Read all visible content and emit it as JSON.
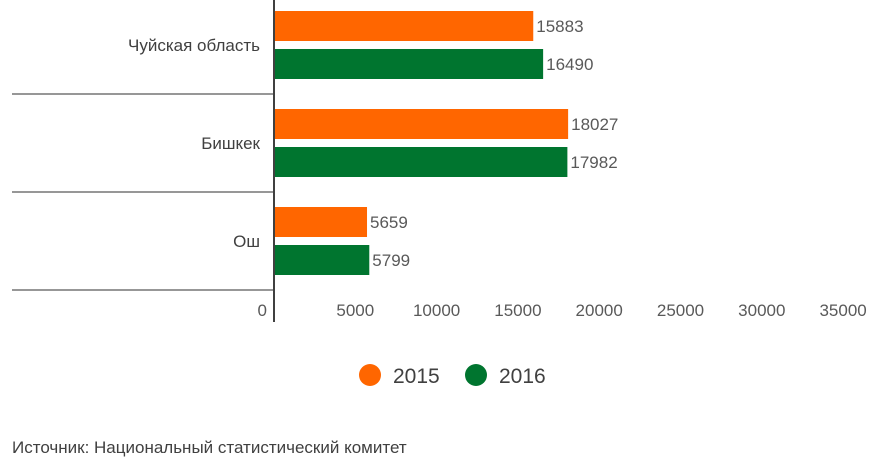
{
  "chart_data": {
    "type": "bar",
    "orientation": "horizontal",
    "categories": [
      "Чуйская область",
      "Бишкек",
      "Ош"
    ],
    "series": [
      {
        "name": "2015",
        "color": "#ff6600",
        "values": [
          15883,
          18027,
          5659
        ]
      },
      {
        "name": "2016",
        "color": "#00752f",
        "values": [
          16490,
          17982,
          5799
        ]
      }
    ],
    "xticks": [
      "0",
      "5000",
      "10000",
      "15000",
      "20000",
      "25000",
      "30000",
      "35000"
    ],
    "xlim": [
      0,
      35000
    ],
    "data_labels": true,
    "grid": false,
    "legend_position": "bottom"
  },
  "source": "Источник: Национальный статистический комитет"
}
